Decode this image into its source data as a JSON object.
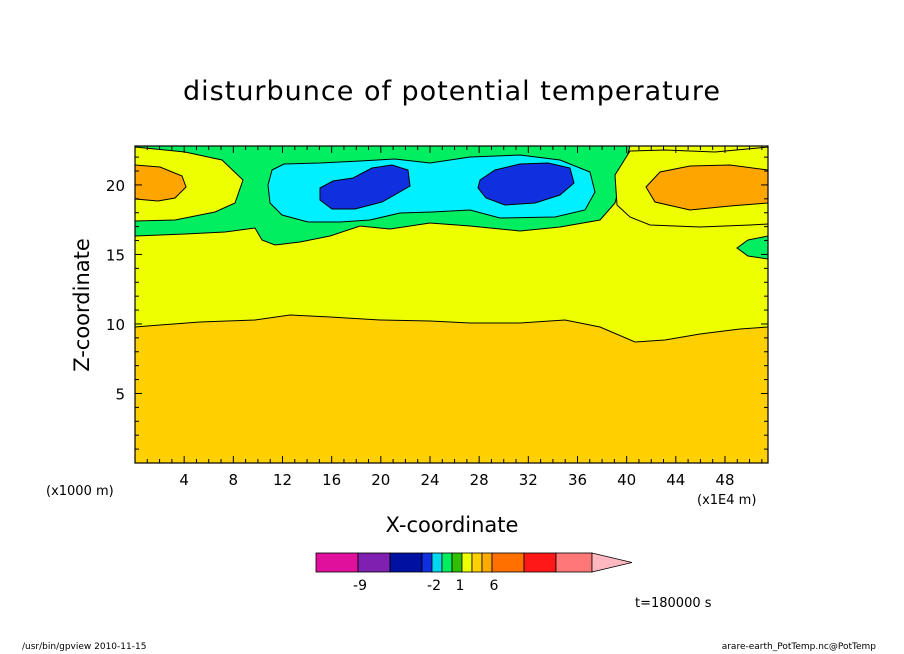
{
  "chart_data": {
    "type": "contour",
    "title": "disturbunce of potential temperature",
    "xlabel": "X-coordinate",
    "ylabel": "Z-coordinate",
    "x_unit_label": "(x1000 m)",
    "x_unit_label_2": "(x1E4 m)",
    "xlim": [
      0,
      51.5
    ],
    "ylim": [
      0,
      22.8
    ],
    "x_ticks": [
      4,
      8,
      12,
      16,
      20,
      24,
      28,
      32,
      36,
      40,
      44,
      48
    ],
    "y_ticks": [
      5,
      10,
      15,
      20
    ],
    "contour_levels": [
      -9,
      -2,
      1,
      6
    ],
    "colorbar": {
      "colors": [
        "#e0109c",
        "#8020b0",
        "#0010a0",
        "#1030e0",
        "#00d8f0",
        "#00ee60",
        "#30c000",
        "#eeff00",
        "#ffd000",
        "#ffaa00",
        "#ff7000",
        "#ff1818",
        "#ff7878",
        "#ffb8c0"
      ],
      "tick_labels": [
        "-9",
        "-2",
        "1",
        "6"
      ]
    },
    "regions": [
      {
        "level": "1 to 2",
        "color": "#ffd000",
        "description_z": "0 to ~10"
      },
      {
        "level": "0 to 1",
        "color": "#eeff00",
        "description_z": "~10 to ~16"
      },
      {
        "level": "-1 to 0",
        "color": "#00ee60",
        "description_z": "upper band"
      },
      {
        "level": "-2 to -1",
        "color": "#00f0ff",
        "description_z": "x 10-35, z 17-21.5"
      },
      {
        "level": "< -2",
        "color": "#1030e0",
        "description_z": "cores near x 20 and x 31, z ~19.5"
      },
      {
        "level": "2 to 3",
        "color": "#ffa500",
        "description_z": "cores near x 1 and x 46, z ~20"
      }
    ]
  },
  "annotations": {
    "time": "t=180000 s",
    "footer_left": "/usr/bin/gpview   2010-11-15",
    "footer_right": "arare-earth_PotTemp.nc@PotTemp"
  }
}
